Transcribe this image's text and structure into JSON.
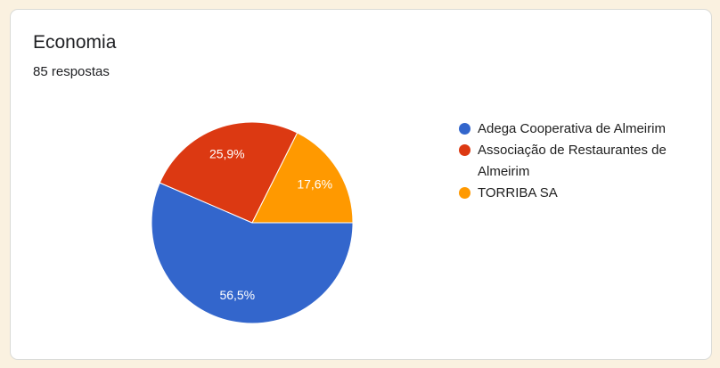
{
  "page_background": "#FAF1E0",
  "card": {
    "title": "Economia",
    "subtitle": "85 respostas",
    "background": "#FFFFFF",
    "border_color": "#DADBD7"
  },
  "chart_data": {
    "type": "pie",
    "title": "Economia",
    "subtitle": "85 respostas",
    "start_angle_deg": 0,
    "direction": "clockwise",
    "legend_position": "right",
    "label_format": "percent-comma-decimal",
    "label_color": "#FFFFFF",
    "slices": [
      {
        "label": "Adega Cooperativa de Almeirim",
        "value_pct": 56.5,
        "display": "56,5%",
        "color": "#3366CC"
      },
      {
        "label": "Associação de Restaurantes de Almeirim",
        "value_pct": 25.9,
        "display": "25,9%",
        "color": "#DC3912"
      },
      {
        "label": "TORRIBA SA",
        "value_pct": 17.6,
        "display": "17,6%",
        "color": "#FF9900"
      }
    ]
  }
}
